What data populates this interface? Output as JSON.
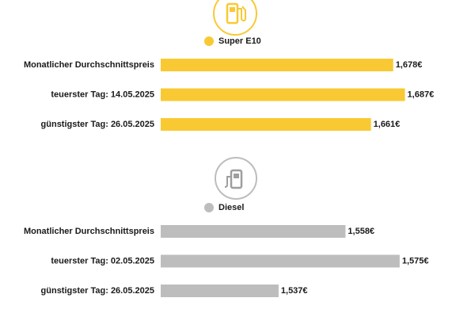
{
  "chart_data": [
    {
      "type": "bar",
      "orientation": "horizontal",
      "series": [
        {
          "name": "Super E10",
          "color": "#f9c934",
          "values": [
            1.678,
            1.687,
            1.661
          ],
          "value_labels": [
            "1,678€",
            "1,687€",
            "1,661€"
          ]
        }
      ],
      "categories": [
        "Monatlicher Durchschnittspreis",
        "teuerster Tag: 14.05.2025",
        "günstigster Tag: 26.05.2025"
      ],
      "xlim": [
        1.5,
        1.7
      ]
    },
    {
      "type": "bar",
      "orientation": "horizontal",
      "series": [
        {
          "name": "Diesel",
          "color": "#bdbdbd",
          "values": [
            1.558,
            1.575,
            1.537
          ],
          "value_labels": [
            "1,558€",
            "1,575€",
            "1,537€"
          ]
        }
      ],
      "categories": [
        "Monatlicher Durchschnittspreis",
        "teuerster Tag: 02.05.2025",
        "günstigster Tag: 26.05.2025"
      ],
      "xlim": [
        1.5,
        1.582
      ]
    }
  ]
}
